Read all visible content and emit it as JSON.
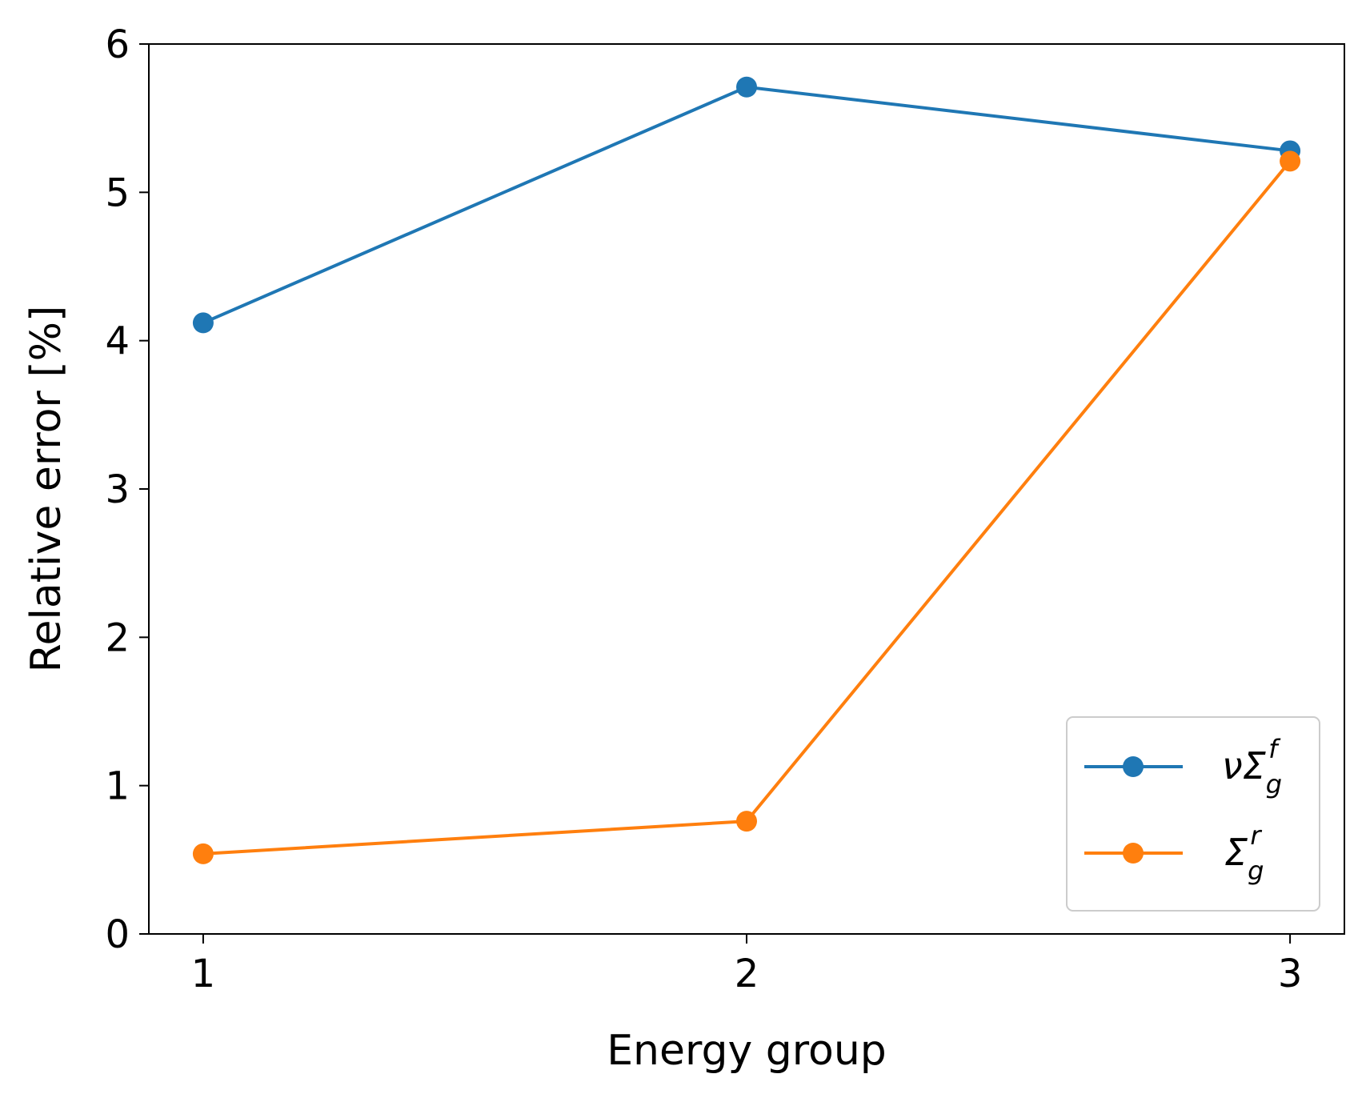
{
  "chart_data": {
    "type": "line",
    "x": [
      1,
      2,
      3
    ],
    "series": [
      {
        "name": "νΣ_g^f",
        "label": {
          "base": "νΣ",
          "sub": "g",
          "sup": "f"
        },
        "values": [
          4.12,
          5.71,
          5.28
        ],
        "color": "#1f77b4"
      },
      {
        "name": "Σ_g^r",
        "label": {
          "base": "Σ",
          "sub": "g",
          "sup": "r"
        },
        "values": [
          0.54,
          0.76,
          5.21
        ],
        "color": "#ff7f0e"
      }
    ],
    "title": "",
    "xlabel": "Energy group",
    "ylabel": "Relative error [%]",
    "xlim": [
      0.9,
      3.1
    ],
    "ylim": [
      0,
      6
    ],
    "xticks": [
      1,
      2,
      3
    ],
    "yticks": [
      0,
      1,
      2,
      3,
      4,
      5,
      6
    ],
    "grid": false,
    "legend_position": "lower-right",
    "marker": "circle"
  }
}
